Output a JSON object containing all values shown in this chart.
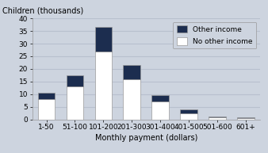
{
  "categories": [
    "1-50",
    "51-100",
    "101-200",
    "201-300",
    "301-400",
    "401-500",
    "501-600",
    "601+"
  ],
  "no_other_income": [
    8,
    13,
    27,
    16,
    7,
    2.5,
    0.7,
    0.4
  ],
  "other_income": [
    2.5,
    4.5,
    9.5,
    5.5,
    2.5,
    1.5,
    0.5,
    0.3
  ],
  "color_no_other": "#ffffff",
  "color_other": "#1c2d4f",
  "bar_edge_color": "#999999",
  "background_color": "#cdd4df",
  "grid_color": "#b8c0ce",
  "ylabel": "Children (thousands)",
  "xlabel": "Monthly payment (dollars)",
  "ylim": [
    0,
    40
  ],
  "yticks": [
    0,
    5,
    10,
    15,
    20,
    25,
    30,
    35,
    40
  ],
  "legend_labels": [
    "Other income",
    "No other income"
  ],
  "tick_fontsize": 6.5,
  "label_fontsize": 7
}
